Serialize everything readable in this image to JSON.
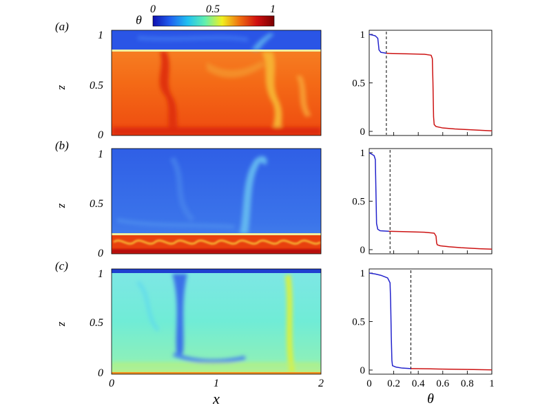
{
  "colorbar": {
    "symbol": "θ",
    "ticks": [
      "0",
      "0.5",
      "1"
    ],
    "colors": [
      "#1010b0",
      "#2060f0",
      "#20c0f0",
      "#60f0b0",
      "#f0f020",
      "#f07010",
      "#d01010",
      "#7a0000"
    ]
  },
  "panels": [
    {
      "label": "(a)",
      "field_base": "#f46a16",
      "layer_base": "#2a55e6",
      "layer": "top",
      "split_z": 0.8
    },
    {
      "label": "(b)",
      "field_base": "#3a6fe8",
      "layer_base": "#e8400e",
      "layer": "bottom",
      "split_z": 0.18
    },
    {
      "label": "(c)",
      "field_base": "#70ecd6",
      "layer_base": "#1f3fd0",
      "layer": "none",
      "split_z": 1.0
    }
  ],
  "field_axes": {
    "xlabel": "x",
    "zlabel": "z",
    "xticks": [
      "0",
      "1",
      "2"
    ],
    "zticks": [
      "0",
      "0.5",
      "1"
    ]
  },
  "chart_data": [
    {
      "type": "line",
      "panel": "(a)",
      "xlim": [
        0,
        1
      ],
      "ylim": [
        0,
        1
      ],
      "yticks": [
        "0",
        "0.5",
        "1"
      ],
      "series": [
        {
          "color": "#2222cc",
          "x": [
            0.0,
            0.02,
            0.05,
            0.07,
            0.075,
            0.08,
            0.095,
            0.12,
            0.14
          ],
          "y": [
            1.0,
            0.995,
            0.985,
            0.96,
            0.9,
            0.84,
            0.815,
            0.81,
            0.805
          ]
        },
        {
          "color": "#cc1111",
          "x": [
            0.14,
            0.3,
            0.45,
            0.505,
            0.515,
            0.52,
            0.525,
            0.53,
            0.545,
            0.6,
            0.7,
            0.85,
            1.0
          ],
          "y": [
            0.805,
            0.8,
            0.795,
            0.785,
            0.75,
            0.5,
            0.15,
            0.07,
            0.05,
            0.035,
            0.025,
            0.015,
            0.005
          ]
        }
      ],
      "vline_x": 0.14
    },
    {
      "type": "line",
      "panel": "(b)",
      "xlim": [
        0,
        1
      ],
      "ylim": [
        0,
        1
      ],
      "yticks": [
        "0",
        "0.5",
        "1"
      ],
      "series": [
        {
          "color": "#2222cc",
          "x": [
            0.0,
            0.02,
            0.04,
            0.05,
            0.055,
            0.06,
            0.07,
            0.09,
            0.16
          ],
          "y": [
            1.0,
            0.985,
            0.97,
            0.93,
            0.6,
            0.27,
            0.21,
            0.195,
            0.19
          ]
        },
        {
          "color": "#cc1111",
          "x": [
            0.16,
            0.3,
            0.45,
            0.53,
            0.545,
            0.55,
            0.555,
            0.58,
            0.65,
            0.75,
            0.9,
            1.0
          ],
          "y": [
            0.19,
            0.185,
            0.18,
            0.17,
            0.14,
            0.07,
            0.05,
            0.04,
            0.03,
            0.02,
            0.01,
            0.005
          ]
        }
      ],
      "vline_x": 0.17
    },
    {
      "type": "line",
      "panel": "(c)",
      "xlim": [
        0,
        1
      ],
      "ylim": [
        0,
        1
      ],
      "yticks": [
        "0",
        "0.5",
        "1"
      ],
      "xticks": [
        "0",
        "0.2",
        "0.4",
        "0.6",
        "0.8",
        "1"
      ],
      "xlabel": "θ",
      "series": [
        {
          "color": "#2222cc",
          "x": [
            0.0,
            0.05,
            0.1,
            0.15,
            0.17,
            0.175,
            0.18,
            0.185,
            0.19,
            0.22,
            0.27,
            0.34
          ],
          "y": [
            1.0,
            0.99,
            0.975,
            0.95,
            0.9,
            0.7,
            0.35,
            0.1,
            0.045,
            0.03,
            0.02,
            0.015
          ]
        },
        {
          "color": "#cc1111",
          "x": [
            0.34,
            0.5,
            0.7,
            0.85,
            1.0
          ],
          "y": [
            0.015,
            0.012,
            0.008,
            0.005,
            0.002
          ]
        }
      ],
      "vline_x": 0.34
    }
  ]
}
